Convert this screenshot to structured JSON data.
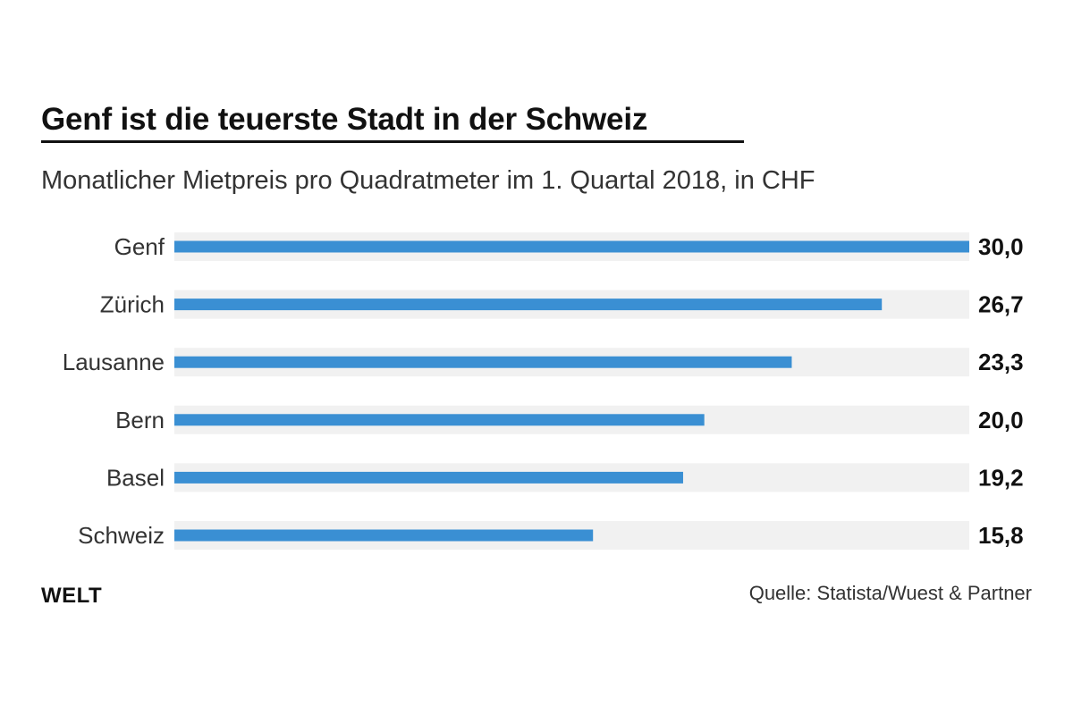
{
  "chart_data": {
    "type": "bar",
    "orientation": "horizontal",
    "title": "Genf ist die teuerste Stadt in der Schweiz",
    "subtitle": "Monatlicher Mietpreis pro Quadratmeter im 1. Quartal 2018, in CHF",
    "categories": [
      "Genf",
      "Zürich",
      "Lausanne",
      "Bern",
      "Basel",
      "Schweiz"
    ],
    "values": [
      30.0,
      26.7,
      23.3,
      20.0,
      19.2,
      15.8
    ],
    "value_labels": [
      "30,0",
      "26,7",
      "23,3",
      "20,0",
      "19,2",
      "15,8"
    ],
    "xlim": [
      0,
      30
    ],
    "grid": false,
    "legend": "none",
    "bar_color": "#3a8fd3",
    "track_color": "#f1f1f1"
  },
  "brand": "WELT",
  "source": "Quelle: Statista/Wuest & Partner"
}
